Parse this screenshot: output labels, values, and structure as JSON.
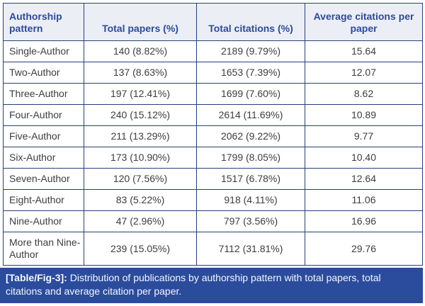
{
  "table": {
    "columns": [
      "Authorship pattern",
      "Total papers (%)",
      "Total citations (%)",
      "Average citations per paper"
    ],
    "rows": [
      [
        "Single-Author",
        "140 (8.82%)",
        "2189 (9.79%)",
        "15.64"
      ],
      [
        "Two-Author",
        "137 (8.63%)",
        "1653 (7.39%)",
        "12.07"
      ],
      [
        "Three-Author",
        "197 (12.41%)",
        "1699 (7.60%)",
        "8.62"
      ],
      [
        "Four-Author",
        "240 (15.12%)",
        "2614 (11.69%)",
        "10.89"
      ],
      [
        "Five-Author",
        "211 (13.29%)",
        "2062 (9.22%)",
        "9.77"
      ],
      [
        "Six-Author",
        "173 (10.90%)",
        "1799 (8.05%)",
        "10.40"
      ],
      [
        "Seven-Author",
        "120 (7.56%)",
        "1517 (6.78%)",
        "12.64"
      ],
      [
        "Eight-Author",
        "83 (5.22%)",
        "918 (4.11%)",
        "11.06"
      ],
      [
        "Nine-Author",
        "47 (2.96%)",
        "797 (3.56%)",
        "16.96"
      ],
      [
        "More than Nine-Author",
        "239 (15.05%)",
        "7112 (31.81%)",
        "29.76"
      ]
    ]
  },
  "caption": {
    "label": "[Table/Fig-3]:",
    "text": " Distribution of publications by authorship pattern with total papers, total citations and average citation per paper."
  },
  "chart_data": {
    "type": "table",
    "title": "[Table/Fig-3]: Distribution of publications by authorship pattern with total papers, total citations and average citation per paper.",
    "columns": [
      "Authorship pattern",
      "Total papers (%)",
      "Total citations (%)",
      "Average citations per paper"
    ],
    "categories": [
      "Single-Author",
      "Two-Author",
      "Three-Author",
      "Four-Author",
      "Five-Author",
      "Six-Author",
      "Seven-Author",
      "Eight-Author",
      "Nine-Author",
      "More than Nine-Author"
    ],
    "series": [
      {
        "name": "Total papers",
        "values": [
          140,
          137,
          197,
          240,
          211,
          173,
          120,
          83,
          47,
          239
        ]
      },
      {
        "name": "Total papers %",
        "values": [
          8.82,
          8.63,
          12.41,
          15.12,
          13.29,
          10.9,
          7.56,
          5.22,
          2.96,
          15.05
        ]
      },
      {
        "name": "Total citations",
        "values": [
          2189,
          1653,
          1699,
          2614,
          2062,
          1799,
          1517,
          918,
          797,
          7112
        ]
      },
      {
        "name": "Total citations %",
        "values": [
          9.79,
          7.39,
          7.6,
          11.69,
          9.22,
          8.05,
          6.78,
          4.11,
          3.56,
          31.81
        ]
      },
      {
        "name": "Average citations per paper",
        "values": [
          15.64,
          12.07,
          8.62,
          10.89,
          9.77,
          10.4,
          12.64,
          11.06,
          16.96,
          29.76
        ]
      }
    ]
  },
  "colors": {
    "border": "#25407D",
    "header_bg": "#ECEEF6",
    "header_text": "#2B4B9B",
    "body_text": "#3D3D3D",
    "caption_bg": "#2B4C9D",
    "caption_text": "#F5F7FC"
  }
}
